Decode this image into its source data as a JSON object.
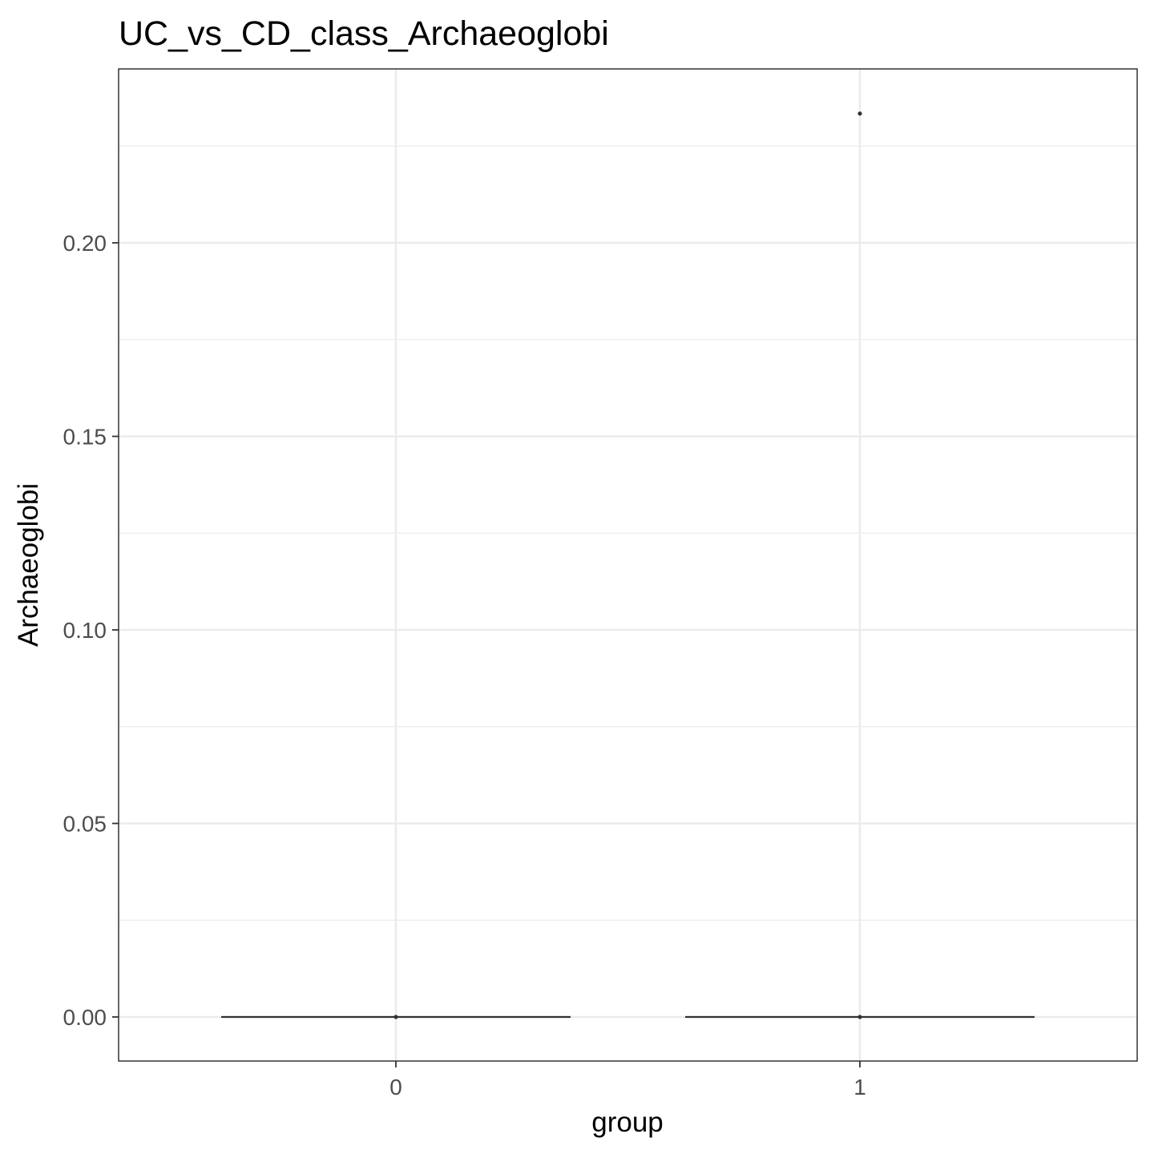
{
  "chart_data": {
    "type": "boxplot",
    "title": "UC_vs_CD_class_Archaeoglobi",
    "xlabel": "group",
    "ylabel": "Archaeoglobi",
    "categories": [
      "0",
      "1"
    ],
    "yticks": [
      {
        "value": 0.0,
        "label": "0.00"
      },
      {
        "value": 0.05,
        "label": "0.05"
      },
      {
        "value": 0.1,
        "label": "0.10"
      },
      {
        "value": 0.15,
        "label": "0.15"
      },
      {
        "value": 0.2,
        "label": "0.20"
      }
    ],
    "ylim": [
      -0.0112,
      0.2352
    ],
    "grid": true,
    "boxes": [
      {
        "group": "0",
        "min": 0.0,
        "q1": 0.0,
        "median": 0.0,
        "q3": 0.0,
        "max": 0.0,
        "outliers": []
      },
      {
        "group": "1",
        "min": 0.0,
        "q1": 0.0,
        "median": 0.0,
        "q3": 0.0,
        "max": 0.0,
        "outliers": [
          0.2334
        ]
      }
    ],
    "colors": {
      "box": "#333333",
      "grid": "#ebebeb",
      "panel_border": "#333333",
      "background": "#ffffff"
    }
  }
}
